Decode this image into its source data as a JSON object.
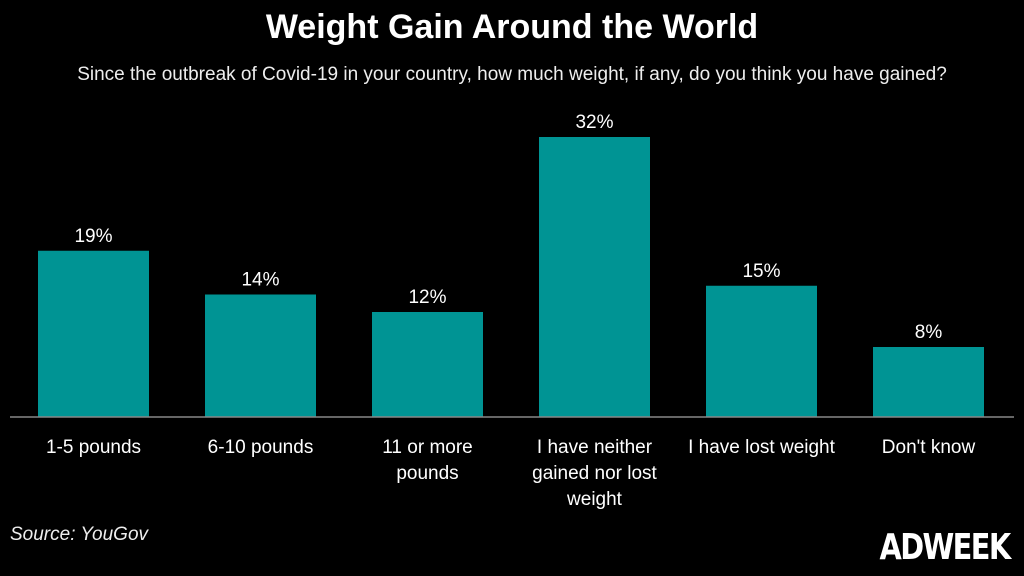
{
  "chart_data": {
    "type": "bar",
    "title": "Weight Gain Around the World",
    "subtitle": "Since the outbreak of Covid-19 in your country, how much weight, if any, do you think you have gained?",
    "categories": [
      [
        "1-5 pounds"
      ],
      [
        "6-10 pounds"
      ],
      [
        "11 or more",
        "pounds"
      ],
      [
        "I have neither",
        "gained nor lost",
        "weight"
      ],
      [
        "I have lost weight"
      ],
      [
        "Don't know"
      ]
    ],
    "values": [
      19,
      14,
      12,
      32,
      15,
      8
    ],
    "value_labels": [
      "19%",
      "14%",
      "12%",
      "32%",
      "15%",
      "8%"
    ],
    "ylim": [
      0,
      32
    ],
    "grid": false,
    "bar_color": "#009494",
    "axis_color": "#888888"
  },
  "source": "Source: YouGov",
  "logo": "ADWEEK"
}
